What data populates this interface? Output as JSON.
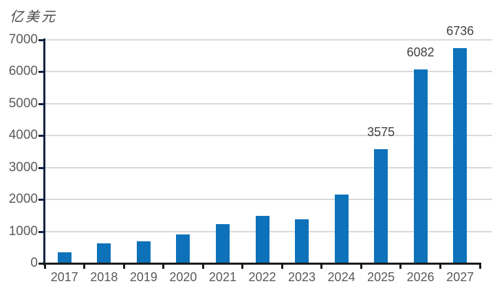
{
  "chart_data": {
    "type": "bar",
    "title": "",
    "unit_label": "亿美元",
    "xlabel": "",
    "ylabel": "亿美元",
    "categories": [
      "2017",
      "2018",
      "2019",
      "2020",
      "2021",
      "2022",
      "2023",
      "2024",
      "2025",
      "2026",
      "2027"
    ],
    "values": [
      340,
      620,
      685,
      900,
      1230,
      1480,
      1380,
      2150,
      3575,
      6082,
      6736
    ],
    "data_labels": [
      "",
      "",
      "",
      "",
      "",
      "",
      "",
      "",
      "3575",
      "6082",
      "6736"
    ],
    "ylim": [
      0,
      7000
    ],
    "ytick_step": 1000,
    "ytick_labels": [
      "0",
      "1000",
      "2000",
      "3000",
      "4000",
      "5000",
      "6000",
      "7000"
    ],
    "grid": true,
    "legend_position": "none",
    "colors": {
      "bar": "#0d72ba",
      "gridline": "#d9d9d9",
      "y_axis": "#0e2342",
      "x_axis": "#1a1a1a",
      "tick_label": "#595959",
      "data_label": "#404040",
      "unit_label": "#4a4a4a",
      "background": "#ffffff"
    }
  }
}
